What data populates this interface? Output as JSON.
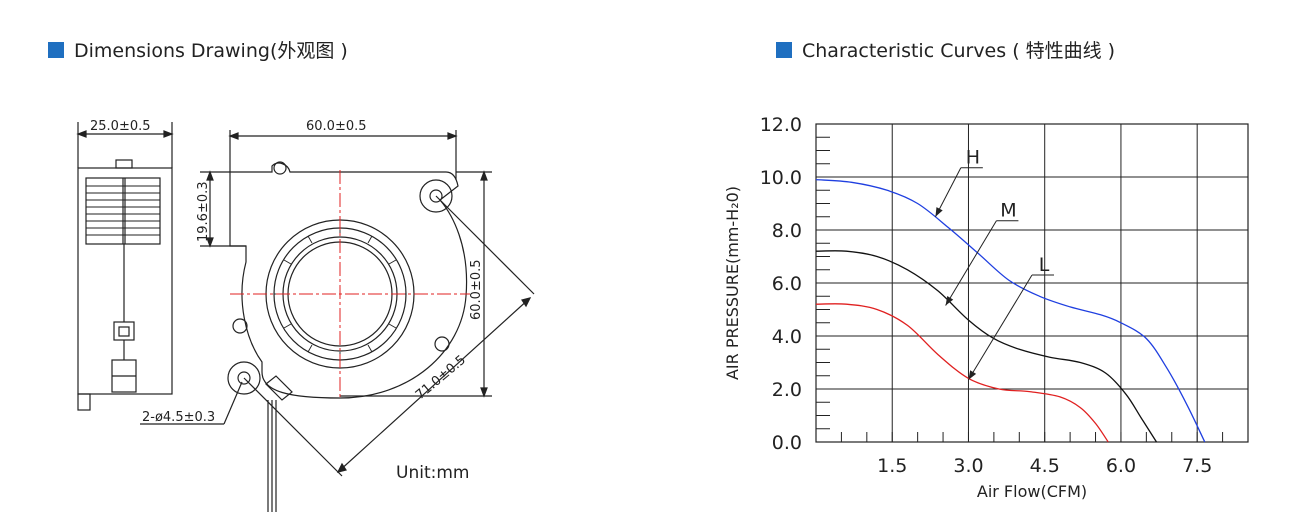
{
  "headings": {
    "left": "Dimensions Drawing(外观图 )",
    "right": "Characteristic Curves ( 特性曲线 )"
  },
  "drawing": {
    "dim_width": "25.0±0.5",
    "dim_top": "60.0±0.5",
    "dim_offset": "19.6±0.3",
    "dim_height": "60.0±0.5",
    "dim_diag": "71.0±0.5",
    "dim_hole": "2-ø4.5±0.3",
    "unit": "Unit:mm"
  },
  "chart_data": {
    "type": "line",
    "xlabel": "Air Flow(CFM)",
    "ylabel": "AIR PRESSURE(mm-H₂0)",
    "xlim": [
      0,
      8.5
    ],
    "ylim": [
      0,
      12
    ],
    "x_ticks": [
      "1.5",
      "3.0",
      "4.5",
      "6.0",
      "7.5"
    ],
    "y_ticks": [
      "0.0",
      "2.0",
      "4.0",
      "6.0",
      "8.0",
      "10.0",
      "12.0"
    ],
    "grid": true,
    "series": [
      {
        "name": "H",
        "color": "#1f3fe0",
        "points": [
          [
            0,
            9.9
          ],
          [
            0.7,
            9.8
          ],
          [
            1.4,
            9.5
          ],
          [
            2.0,
            9.0
          ],
          [
            2.6,
            8.1
          ],
          [
            3.2,
            7.1
          ],
          [
            3.8,
            6.1
          ],
          [
            4.4,
            5.5
          ],
          [
            5.0,
            5.1
          ],
          [
            5.6,
            4.8
          ],
          [
            6.0,
            4.5
          ],
          [
            6.5,
            3.9
          ],
          [
            6.9,
            2.8
          ],
          [
            7.3,
            1.4
          ],
          [
            7.65,
            0
          ]
        ]
      },
      {
        "name": "M",
        "color": "#111111",
        "points": [
          [
            0,
            7.2
          ],
          [
            0.6,
            7.2
          ],
          [
            1.2,
            7.0
          ],
          [
            1.8,
            6.5
          ],
          [
            2.4,
            5.7
          ],
          [
            3.0,
            4.6
          ],
          [
            3.5,
            3.9
          ],
          [
            4.0,
            3.5
          ],
          [
            4.6,
            3.2
          ],
          [
            5.2,
            3.0
          ],
          [
            5.7,
            2.6
          ],
          [
            6.1,
            1.8
          ],
          [
            6.4,
            0.9
          ],
          [
            6.7,
            0
          ]
        ]
      },
      {
        "name": "L",
        "color": "#e02020",
        "points": [
          [
            0,
            5.2
          ],
          [
            0.6,
            5.2
          ],
          [
            1.2,
            5.0
          ],
          [
            1.8,
            4.4
          ],
          [
            2.4,
            3.3
          ],
          [
            3.0,
            2.4
          ],
          [
            3.6,
            2.0
          ],
          [
            4.2,
            1.9
          ],
          [
            4.8,
            1.7
          ],
          [
            5.2,
            1.3
          ],
          [
            5.5,
            0.7
          ],
          [
            5.75,
            0
          ]
        ]
      }
    ],
    "annotations": [
      "H",
      "M",
      "L"
    ]
  }
}
